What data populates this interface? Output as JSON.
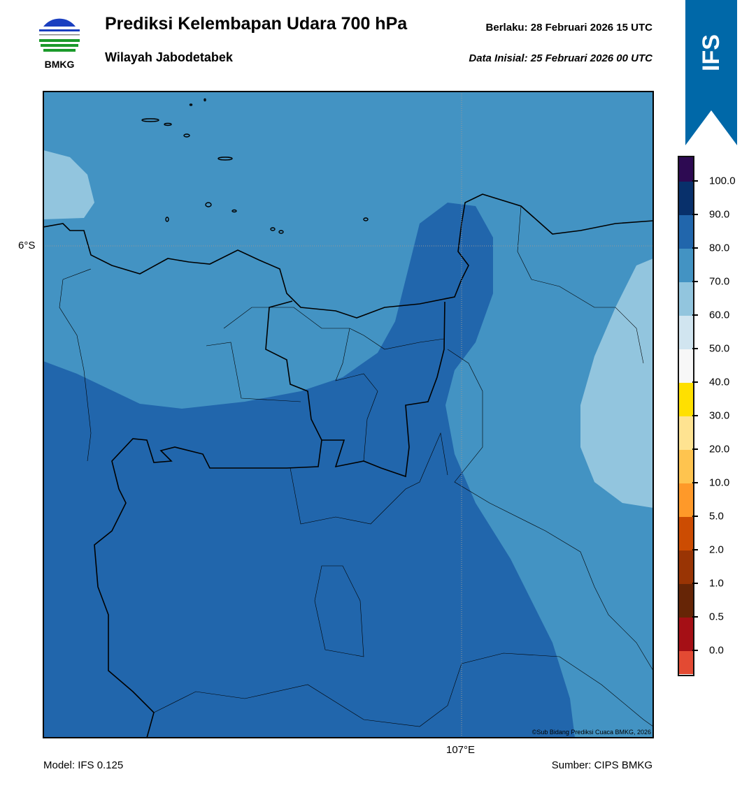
{
  "header": {
    "title": "Prediksi Kelembapan Udara 700 hPa",
    "subtitle": "Wilayah Jabodetabek",
    "valid_label": "Berlaku:  28 Februari 2026 15 UTC",
    "init_label": "Data Inisial:  25 Februari 2026 00 UTC",
    "logo_text": "BMKG",
    "model_badge": "IFS"
  },
  "map": {
    "lat_tick": "6°S",
    "lon_tick": "107°E",
    "copyright": "©Sub Bidang Prediksi Cuaca BMKG, 2026",
    "colors": {
      "background": "#4393c3",
      "high": "#2166ac",
      "low": "#92c5de"
    }
  },
  "colorbar": {
    "colors": [
      "#2d0a52",
      "#08306b",
      "#2166ac",
      "#4393c3",
      "#92c5de",
      "#d1e5f0",
      "#f7f7f7",
      "#ffe000",
      "#fee391",
      "#fec44f",
      "#fe9929",
      "#cc4c02",
      "#993404",
      "#662506",
      "#a50f15",
      "#e34a33"
    ],
    "labels": [
      "100.0",
      "90.0",
      "80.0",
      "70.0",
      "60.0",
      "50.0",
      "40.0",
      "30.0",
      "20.0",
      "10.0",
      "5.0",
      "2.0",
      "1.0",
      "0.5",
      "0.0"
    ]
  },
  "footer": {
    "model": "Model: IFS 0.125",
    "source": "Sumber: CIPS BMKG"
  }
}
